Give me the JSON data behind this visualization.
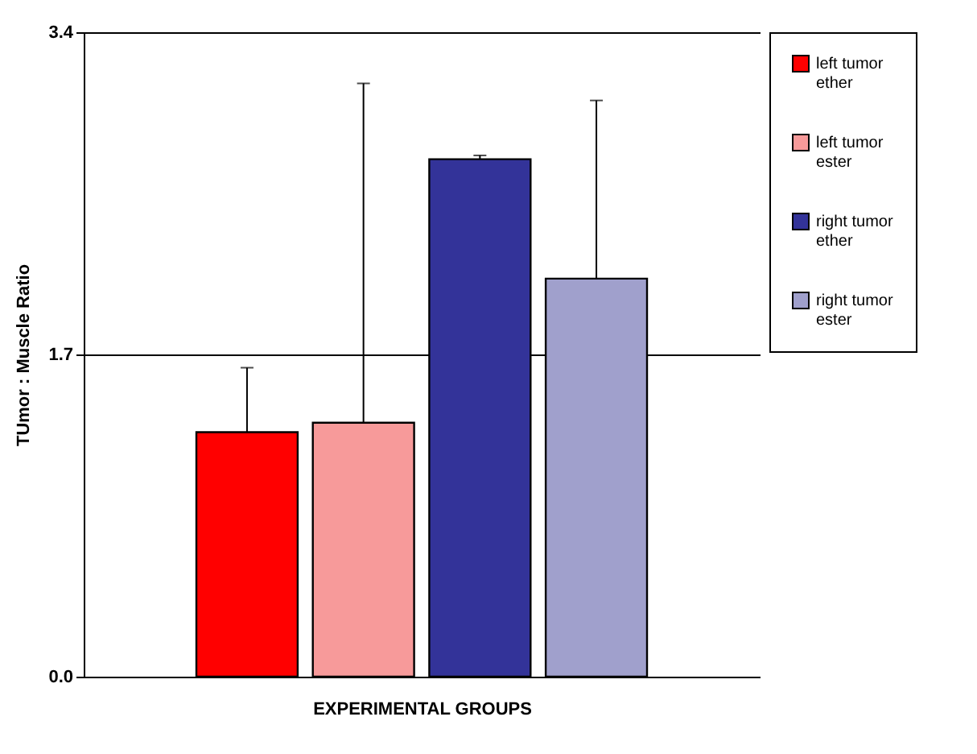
{
  "chart_data": {
    "type": "bar",
    "xlabel": "EXPERIMENTAL GROUPS",
    "ylabel": "TUmor : Muscle Ratio",
    "categories": [
      null
    ],
    "series": [
      {
        "name": "left tumor ether",
        "color": "#ff0000",
        "values": [
          1.29
        ],
        "errors": [
          [
            1.29,
            1.63
          ]
        ]
      },
      {
        "name": "left tumor ester",
        "color": "#f79a9a",
        "values": [
          1.34
        ],
        "errors": [
          [
            1.34,
            3.13
          ]
        ]
      },
      {
        "name": "right tumor ether",
        "color": "#333399",
        "values": [
          2.73
        ],
        "errors": [
          [
            2.73,
            2.75
          ]
        ]
      },
      {
        "name": "right tumor ester",
        "color": "#a0a0cc",
        "values": [
          2.1
        ],
        "errors": [
          [
            2.1,
            3.04
          ]
        ]
      }
    ],
    "ylim": [
      0,
      3.4
    ],
    "yticks": [
      {
        "value": 0,
        "label": "0.0"
      },
      {
        "value": 1.7,
        "label": "1.7"
      },
      {
        "value": 3.4,
        "label": "3.4"
      }
    ],
    "grid": "y",
    "legend": "right",
    "tick_labels": "y"
  }
}
